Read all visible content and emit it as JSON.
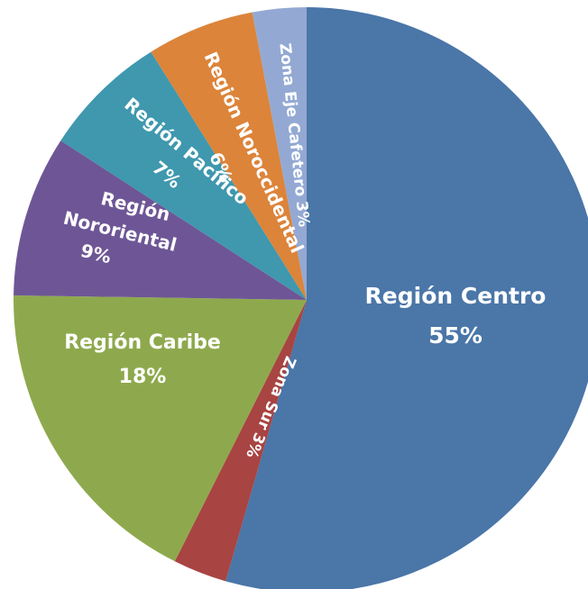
{
  "chart_data": {
    "type": "pie",
    "categories": [
      "Región Centro",
      "Zona Sur",
      "Región Caribe",
      "Región Nororiental",
      "Región Pacífico",
      "Región Noroccidental",
      "Zona Eje Cafetero"
    ],
    "values": [
      55,
      3,
      18,
      9,
      7,
      6,
      3
    ],
    "value_labels": [
      "55%",
      "3%",
      "18%",
      "9%",
      "7%",
      "6%",
      "3%"
    ],
    "colors": [
      "#4a76a8",
      "#a84442",
      "#8ea94d",
      "#6e5696",
      "#3f98ae",
      "#dc843a",
      "#93a9d3"
    ]
  }
}
